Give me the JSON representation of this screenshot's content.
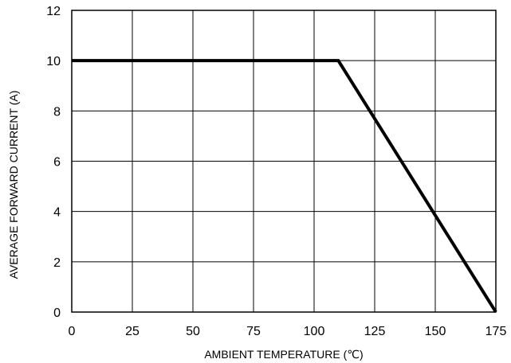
{
  "chart_data": {
    "type": "line",
    "title": "",
    "xlabel": "AMBIENT TEMPERATURE (℃)",
    "ylabel": "AVERAGE FORWARD CURRENT (A)",
    "xlim": [
      0,
      175
    ],
    "ylim": [
      0,
      12
    ],
    "x_ticks": [
      0,
      25,
      50,
      75,
      100,
      125,
      150,
      175
    ],
    "y_ticks": [
      0,
      2,
      4,
      6,
      8,
      10,
      12
    ],
    "x_tick_labels": [
      "0",
      "25",
      "50",
      "75",
      "100",
      "125",
      "150",
      "175"
    ],
    "y_tick_labels": [
      "0",
      "2",
      "4",
      "6",
      "8",
      "10",
      "12"
    ],
    "grid": true,
    "legend": "none",
    "series": [
      {
        "x": [
          0,
          110,
          175
        ],
        "y": [
          10,
          10,
          0
        ],
        "color": "#000000"
      }
    ]
  }
}
